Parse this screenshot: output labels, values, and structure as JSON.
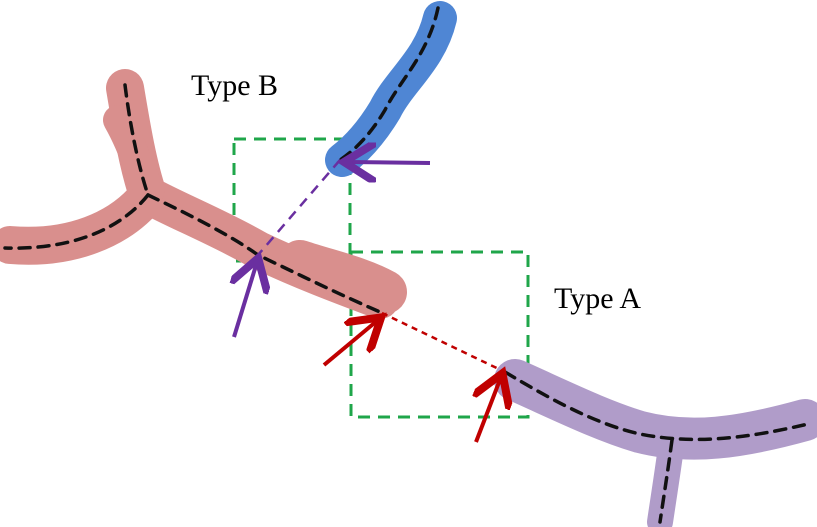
{
  "labels": {
    "type_b": "Type B",
    "type_a": "Type A"
  },
  "colors": {
    "red_vessel": "#d98f8d",
    "blue_vessel": "#4f86d4",
    "purple_vessel": "#b09cc9",
    "centerline": "#111111",
    "box": "#1fa64a",
    "purple_arrow": "#6a2fa0",
    "red_arrow": "#c00000"
  },
  "legend": {
    "shown": false
  }
}
